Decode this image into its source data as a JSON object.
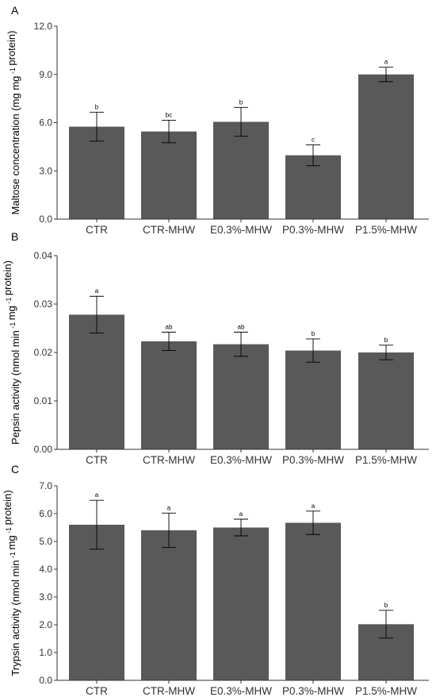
{
  "chart_data": [
    {
      "type": "bar",
      "panel": "A",
      "categories": [
        "CTR",
        "CTR-MHW",
        "E0.3%-MHW",
        "P0.3%-MHW",
        "P1.5%-MHW"
      ],
      "values": [
        5.75,
        5.45,
        6.05,
        3.97,
        9.0
      ],
      "errors": [
        0.9,
        0.7,
        0.9,
        0.65,
        0.45
      ],
      "significance": [
        "b",
        "bc",
        "b",
        "c",
        "a"
      ],
      "ylabel_main": "Maltose concentration (mg mg",
      "ylabel_sup": "-1",
      "ylabel_end": " protein)",
      "ylim": [
        0,
        12
      ],
      "yticks": [
        0,
        3,
        6,
        9,
        12
      ],
      "ytick_labels": [
        "0.0",
        "3.0",
        "6.0",
        "9.0",
        "12.0"
      ],
      "grid": false
    },
    {
      "type": "bar",
      "panel": "B",
      "categories": [
        "CTR",
        "CTR-MHW",
        "E0.3%-MHW",
        "P0.3%-MHW",
        "P1.5%-MHW"
      ],
      "values": [
        0.0278,
        0.0223,
        0.0217,
        0.0204,
        0.02
      ],
      "errors": [
        0.0038,
        0.0019,
        0.0025,
        0.0024,
        0.0015
      ],
      "significance": [
        "a",
        "ab",
        "ab",
        "b",
        "b"
      ],
      "ylabel_main": "Pepsin activity (nmol min",
      "ylabel_sup": "-1",
      "ylabel_mid": " mg",
      "ylabel_sup2": "-1",
      "ylabel_end": " protein)",
      "ylim": [
        0,
        0.04
      ],
      "yticks": [
        0,
        0.01,
        0.02,
        0.03,
        0.04
      ],
      "ytick_labels": [
        "0.00",
        "0.01",
        "0.02",
        "0.03",
        "0.04"
      ],
      "grid": false
    },
    {
      "type": "bar",
      "panel": "C",
      "categories": [
        "CTR",
        "CTR-MHW",
        "E0.3%-MHW",
        "P0.3%-MHW",
        "P1.5%-MHW"
      ],
      "values": [
        5.6,
        5.4,
        5.5,
        5.67,
        2.02
      ],
      "errors": [
        0.88,
        0.62,
        0.3,
        0.42,
        0.5
      ],
      "significance": [
        "a",
        "a",
        "a",
        "a",
        "b"
      ],
      "ylabel_main": "Trypsin activity (nmol min",
      "ylabel_sup": "-1",
      "ylabel_mid": " mg",
      "ylabel_sup2": "-1",
      "ylabel_end": " protein)",
      "ylim": [
        0,
        7
      ],
      "yticks": [
        0,
        1,
        2,
        3,
        4,
        5,
        6,
        7
      ],
      "ytick_labels": [
        "0.0",
        "1.0",
        "2.0",
        "3.0",
        "4.0",
        "5.0",
        "6.0",
        "7.0"
      ],
      "grid": false
    }
  ],
  "colors": {
    "bar": "#595959",
    "axis": "#333333",
    "error_bar": "#000000"
  }
}
